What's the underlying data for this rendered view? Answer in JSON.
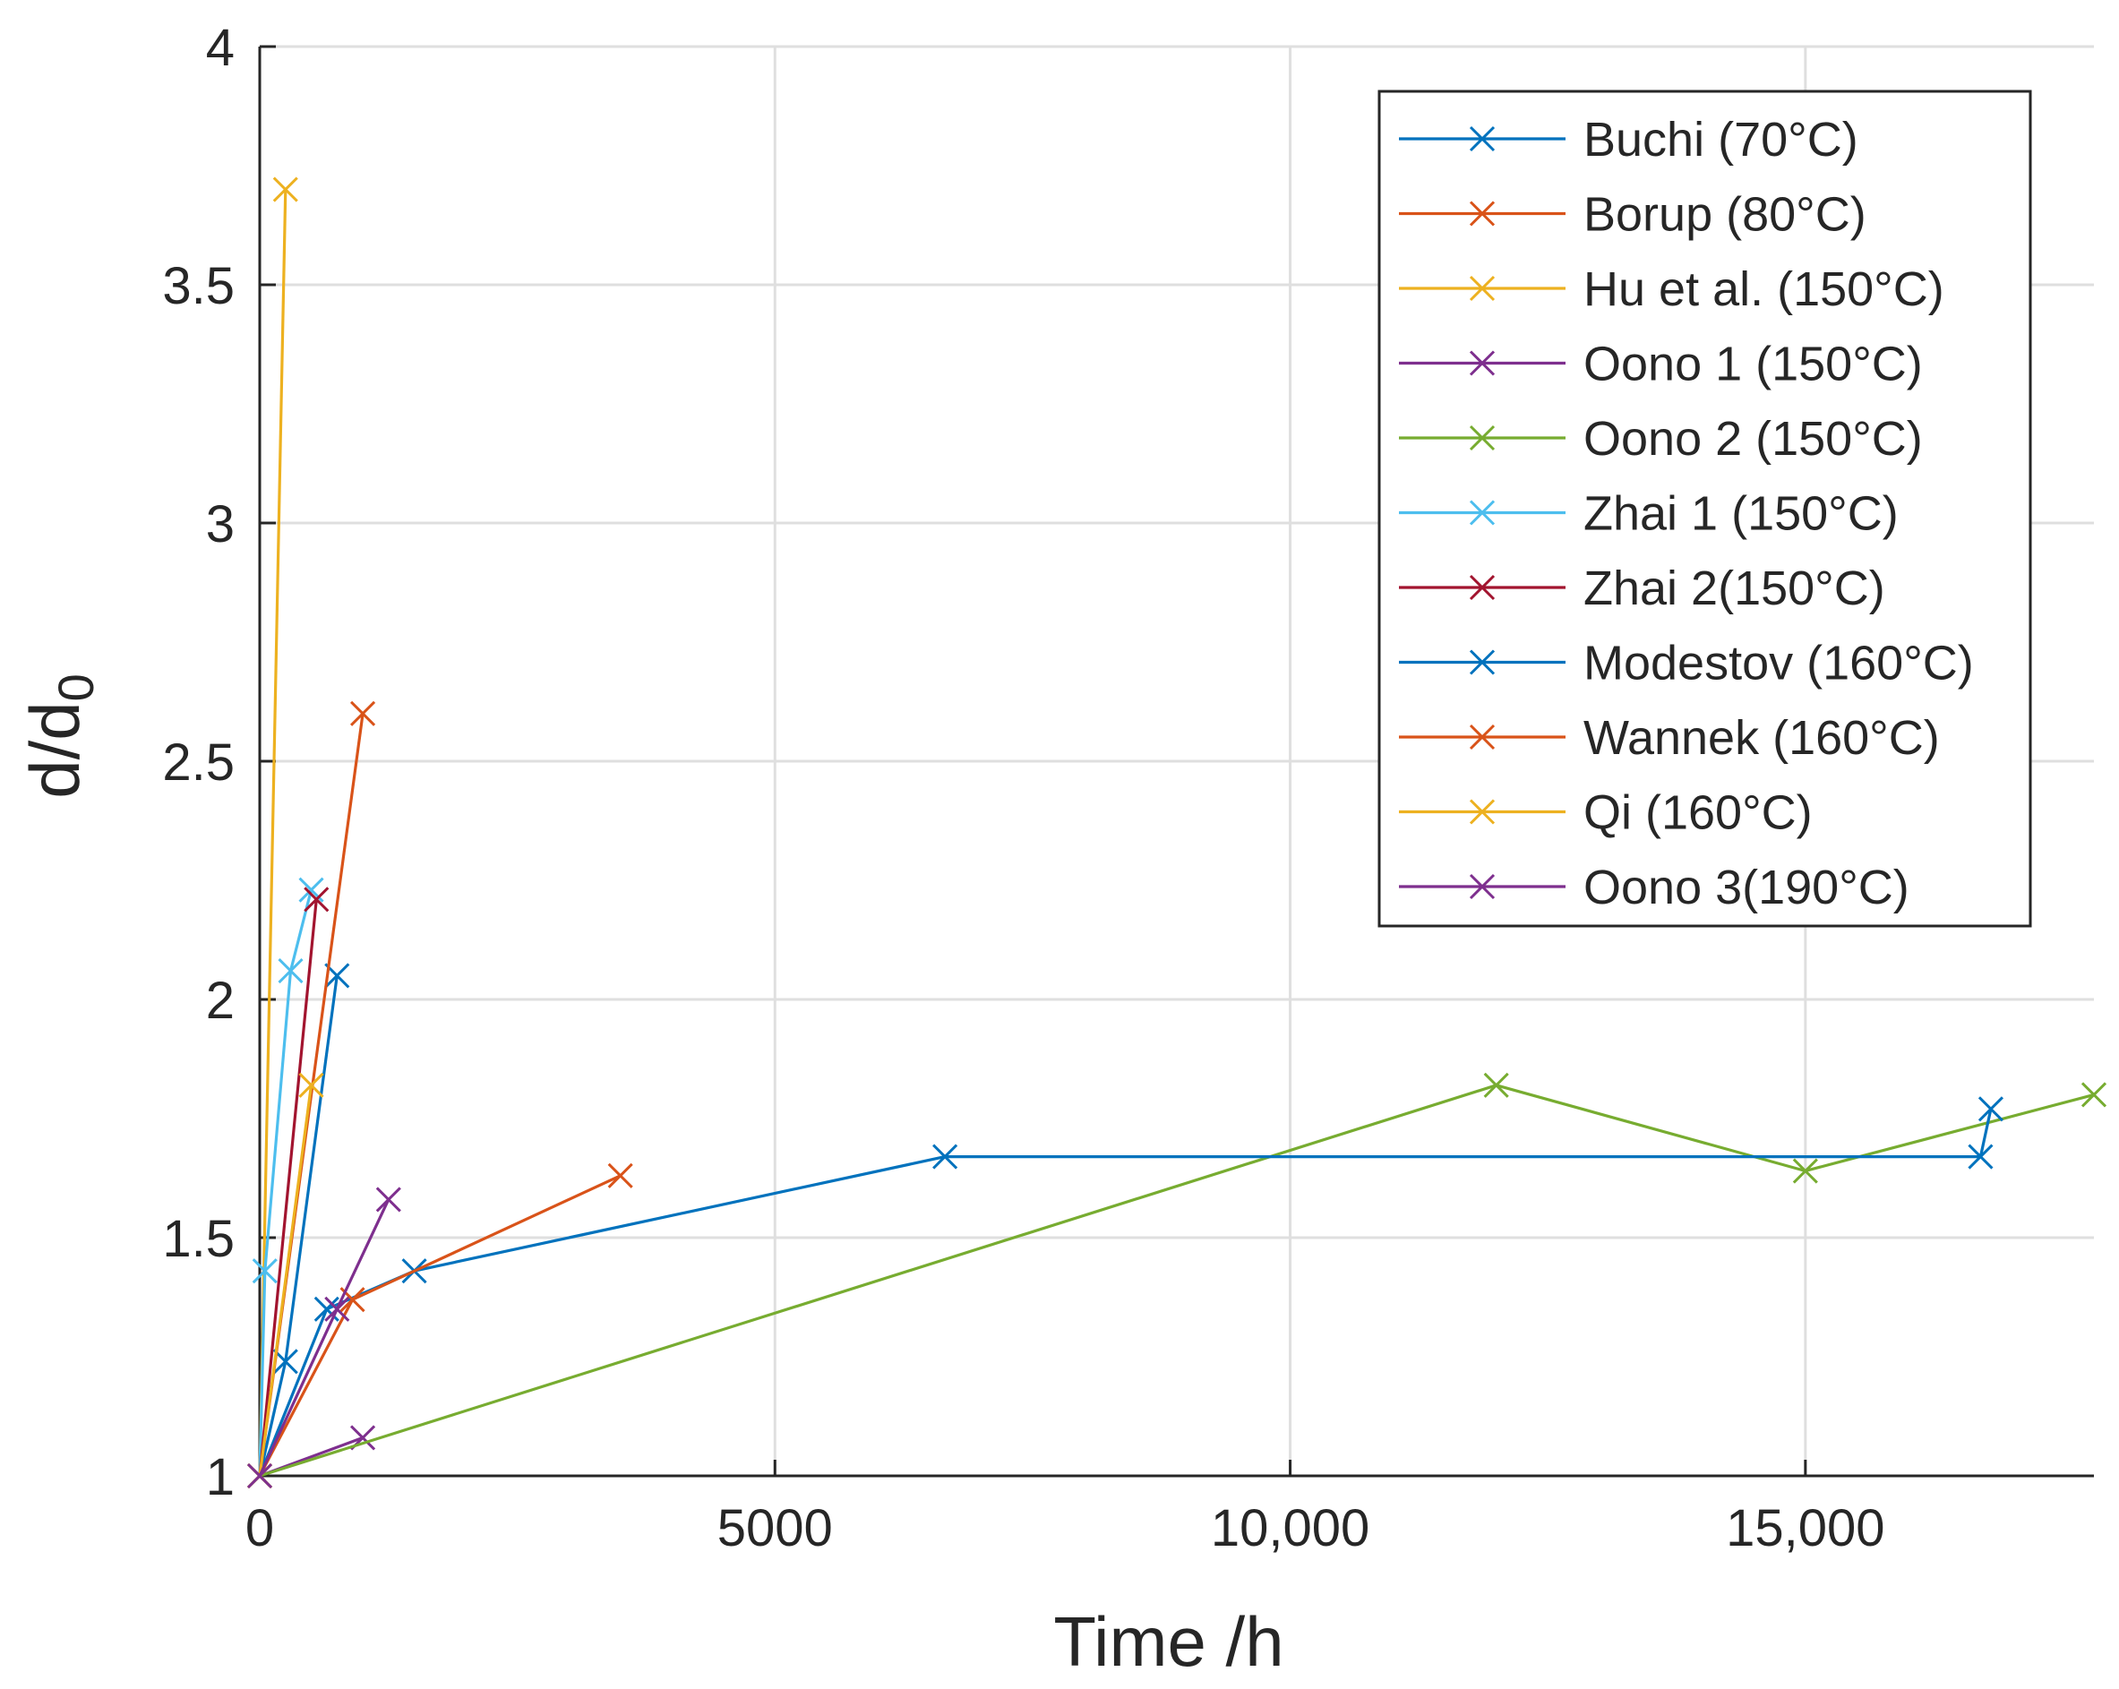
{
  "chart_data": {
    "type": "line",
    "title": "",
    "xlabel": "Time /h",
    "ylabel_main": "d/d",
    "ylabel_sub": "0",
    "xlim": [
      0,
      17800
    ],
    "ylim": [
      1,
      4
    ],
    "grid": true,
    "legend_position": "top-right",
    "xticks": [
      {
        "value": 0,
        "label": "0"
      },
      {
        "value": 5000,
        "label": "5000"
      },
      {
        "value": 10000,
        "label": "10,000"
      },
      {
        "value": 15000,
        "label": "15,000"
      }
    ],
    "yticks": [
      {
        "value": 1,
        "label": "1"
      },
      {
        "value": 1.5,
        "label": "1.5"
      },
      {
        "value": 2,
        "label": "2"
      },
      {
        "value": 2.5,
        "label": "2.5"
      },
      {
        "value": 3,
        "label": "3"
      },
      {
        "value": 3.5,
        "label": "3.5"
      },
      {
        "value": 4,
        "label": "4"
      }
    ],
    "series": [
      {
        "name": "Buchi (70°C)",
        "color": "#0072BD",
        "x": [
          0,
          250,
          750
        ],
        "y": [
          1,
          1.24,
          2.05
        ]
      },
      {
        "name": "Borup (80°C)",
        "color": "#D95319",
        "x": [
          0,
          1000
        ],
        "y": [
          1,
          2.6
        ]
      },
      {
        "name": "Hu et al. (150°C)",
        "color": "#EDB120",
        "x": [
          0,
          250
        ],
        "y": [
          1,
          3.7
        ]
      },
      {
        "name": "Oono 1 (150°C)",
        "color": "#7E2F8E",
        "x": [
          0,
          1000
        ],
        "y": [
          1,
          1.08
        ]
      },
      {
        "name": "Oono 2 (150°C)",
        "color": "#77AC30",
        "x": [
          0,
          12000,
          15000,
          17800
        ],
        "y": [
          1,
          1.82,
          1.64,
          1.8
        ]
      },
      {
        "name": "Zhai 1 (150°C)",
        "color": "#4DBEEE",
        "x": [
          0,
          50,
          300,
          500
        ],
        "y": [
          1,
          1.43,
          2.06,
          2.23
        ]
      },
      {
        "name": "Zhai 2(150°C)",
        "color": "#A2142F",
        "x": [
          0,
          550
        ],
        "y": [
          1,
          2.21
        ]
      },
      {
        "name": "Modestov (160°C)",
        "color": "#0072BD",
        "x": [
          0,
          650,
          1500,
          6650,
          16700,
          16800
        ],
        "y": [
          1,
          1.35,
          1.43,
          1.67,
          1.67,
          1.77
        ]
      },
      {
        "name": "Wannek (160°C)",
        "color": "#D95319",
        "x": [
          0,
          900,
          3500
        ],
        "y": [
          1,
          1.37,
          1.63
        ]
      },
      {
        "name": "Qi (160°C)",
        "color": "#EDB120",
        "x": [
          0,
          500
        ],
        "y": [
          1,
          1.82
        ]
      },
      {
        "name": "Oono 3(190°C)",
        "color": "#7E2F8E",
        "x": [
          0,
          750,
          1250
        ],
        "y": [
          1,
          1.35,
          1.58
        ]
      }
    ]
  }
}
